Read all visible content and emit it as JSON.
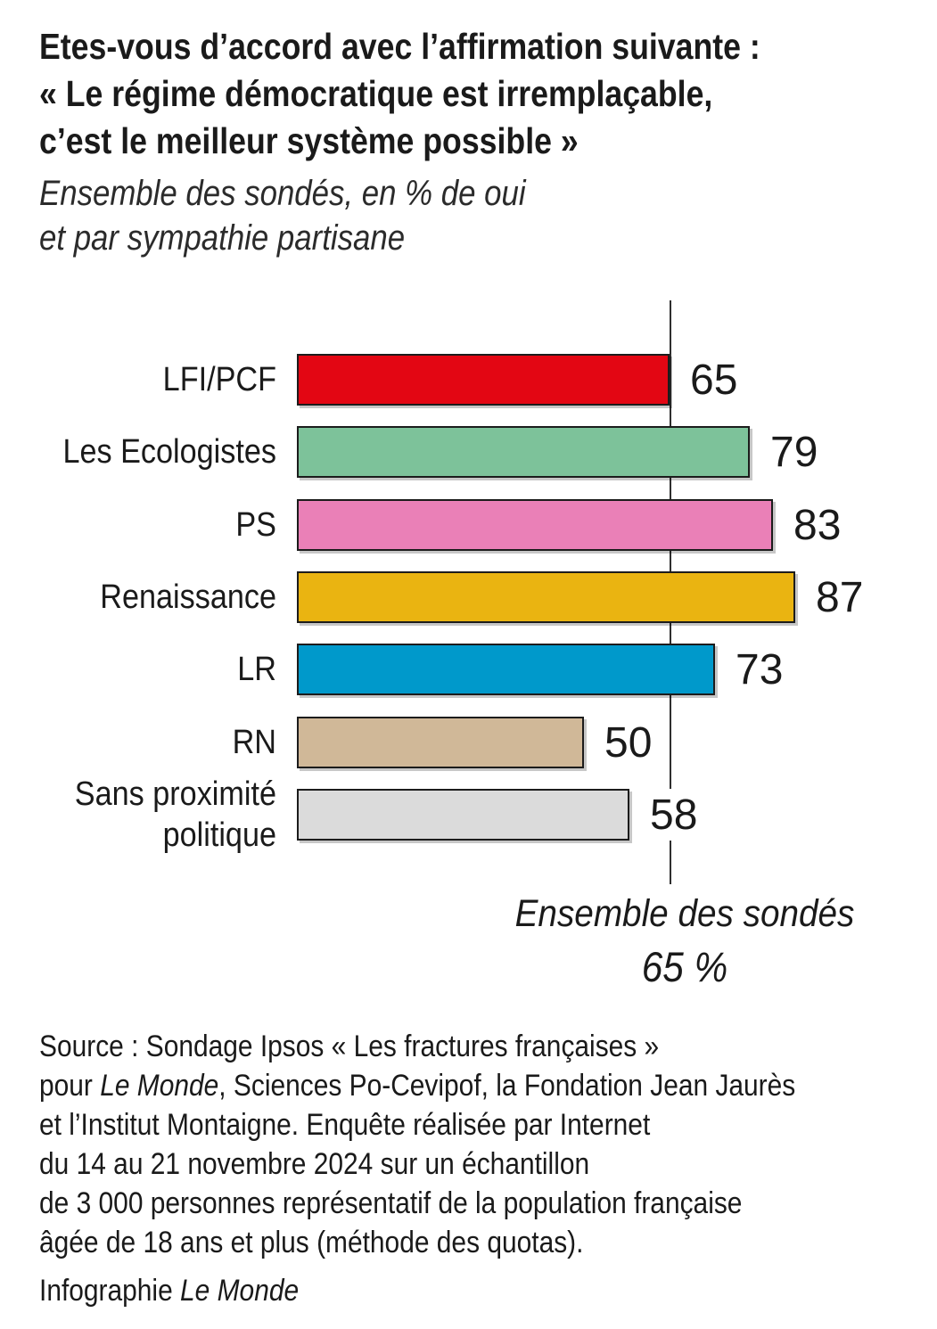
{
  "header": {
    "title_lines": [
      "Etes-vous d’accord avec l’affirmation suivante :",
      "« Le régime démocratique est irremplaçable,",
      "c’est le meilleur système possible »"
    ],
    "subtitle_lines": [
      "Ensemble des sondés, en % de oui",
      "et par sympathie partisane"
    ]
  },
  "chart_data": {
    "type": "bar",
    "orientation": "horizontal",
    "title": "Etes-vous d’accord avec l’affirmation suivante : « Le régime démocratique est irremplaçable, c’est le meilleur système possible »",
    "subtitle": "Ensemble des sondés, en % de oui et par sympathie partisane",
    "unit": "% de oui",
    "categories": [
      "LFI/PCF",
      "Les Ecologistes",
      "PS",
      "Renaissance",
      "LR",
      "RN",
      "Sans proximité politique"
    ],
    "values": [
      65,
      79,
      83,
      87,
      73,
      50,
      58
    ],
    "colors": [
      "#e30613",
      "#7dc29a",
      "#ea80b7",
      "#eab411",
      "#0099cb",
      "#d0b898",
      "#dbdbdb"
    ],
    "xlim": [
      0,
      100
    ],
    "grid": false,
    "legend": false,
    "reference_line": {
      "value": 65,
      "label": "Ensemble des sondés",
      "value_label": "65 %"
    }
  },
  "footer": {
    "line1": "Source : Sondage Ipsos « Les fractures françaises »",
    "line2_pre": "pour ",
    "line2_italic": "Le Monde",
    "line2_post": ", Sciences Po-Cevipof, la Fondation Jean Jaurès",
    "line3": "et l’Institut Montaigne. Enquête réalisée par Internet",
    "line4": "du 14 au 21 novembre 2024 sur un échantillon",
    "line5": "de 3 000 personnes représentatif de la population française",
    "line6": "âgée de 18 ans et plus (méthode des quotas).",
    "line7_pre": "Infographie ",
    "line7_italic": "Le Monde"
  }
}
